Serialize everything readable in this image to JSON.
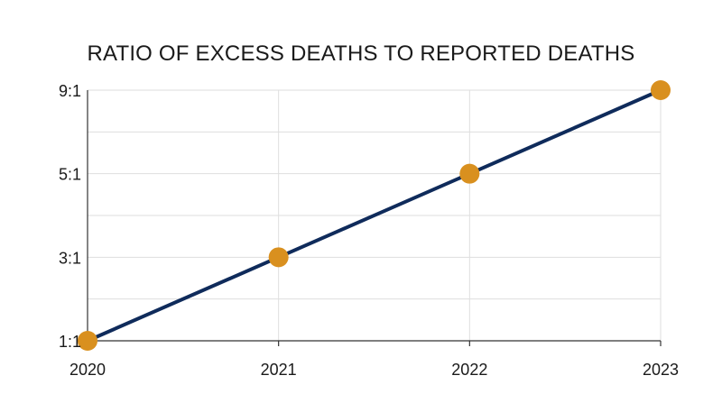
{
  "chart_data": {
    "type": "line",
    "title": "RATIO OF EXCESS DEATHS TO REPORTED DEATHS",
    "xlabel": "",
    "ylabel": "",
    "x": [
      "2020",
      "2021",
      "2022",
      "2023"
    ],
    "values": [
      1,
      4,
      7,
      10
    ],
    "ylim": [
      1,
      10
    ],
    "y_ticks": [
      {
        "value": 1,
        "label": "1:1"
      },
      {
        "value": 4,
        "label": "3:1"
      },
      {
        "value": 7,
        "label": "5:1"
      },
      {
        "value": 10,
        "label": "9:1"
      }
    ],
    "minor_y_gridlines": [
      2.5,
      5.5,
      8.5
    ],
    "grid": true,
    "colors": {
      "line": "#0f2b5b",
      "marker": "#d9901f",
      "grid": "#dedede",
      "axis": "#333333"
    }
  }
}
